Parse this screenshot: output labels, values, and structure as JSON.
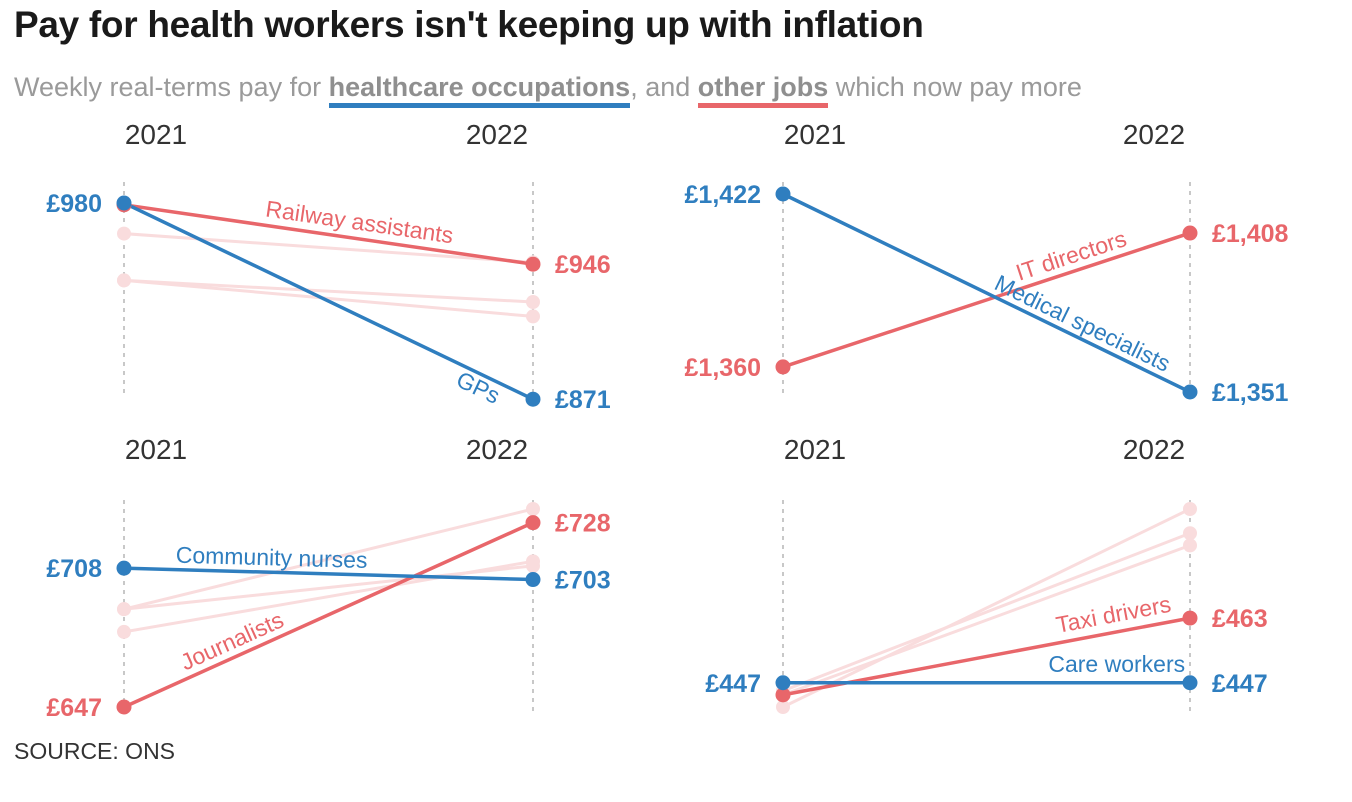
{
  "header": {
    "title": "Pay for health workers isn't keeping up with inflation",
    "subtitle_before": "Weekly real-terms pay for ",
    "subtitle_health": "healthcare occupations",
    "subtitle_middle": ", and ",
    "subtitle_other": "other jobs",
    "subtitle_after": " which now pay more"
  },
  "source": "SOURCE: ONS",
  "colors": {
    "health": "#2f7ebf",
    "other": "#e8666a",
    "ghost": "#f9dcdd",
    "axis": "#c8c8c8"
  },
  "chart_data": [
    {
      "type": "line",
      "x": [
        "2021",
        "2022"
      ],
      "series": [
        {
          "name": "GPs",
          "group": "healthcare",
          "values": [
            980,
            871
          ],
          "start_label": "£980",
          "end_label": "£871"
        },
        {
          "name": "Railway assistants",
          "group": "other",
          "values": [
            979,
            946
          ],
          "end_label": "£946"
        }
      ],
      "background_series": [
        {
          "group": "other",
          "values": [
            963,
            947
          ]
        },
        {
          "group": "other",
          "values": [
            937,
            925
          ]
        },
        {
          "group": "other",
          "values": [
            937,
            917
          ]
        }
      ],
      "ylim": [
        875,
        985
      ]
    },
    {
      "type": "line",
      "x": [
        "2021",
        "2022"
      ],
      "series": [
        {
          "name": "Medical specialists",
          "group": "healthcare",
          "values": [
            1422,
            1351
          ],
          "start_label": "£1,422",
          "end_label": "£1,351"
        },
        {
          "name": "IT directors",
          "group": "other",
          "values": [
            1360,
            1408
          ],
          "start_label": "£1,360",
          "end_label": "£1,408"
        }
      ],
      "background_series": [],
      "ylim": [
        1351,
        1422
      ]
    },
    {
      "type": "line",
      "x": [
        "2021",
        "2022"
      ],
      "series": [
        {
          "name": "Community nurses",
          "group": "healthcare",
          "values": [
            708,
            703
          ],
          "start_label": "£708",
          "end_label": "£703"
        },
        {
          "name": "Journalists",
          "group": "other",
          "values": [
            647,
            728
          ],
          "start_label": "£647",
          "end_label": "£728"
        }
      ],
      "background_series": [
        {
          "group": "other",
          "values": [
            690,
            734
          ]
        },
        {
          "group": "other",
          "values": [
            680,
            711
          ]
        },
        {
          "group": "other",
          "values": [
            690,
            709
          ]
        }
      ],
      "ylim": [
        647,
        734
      ]
    },
    {
      "type": "line",
      "x": [
        "2021",
        "2022"
      ],
      "series": [
        {
          "name": "Care workers",
          "group": "healthcare",
          "values": [
            447,
            447
          ],
          "start_label": "£447",
          "end_label": "£447"
        },
        {
          "name": "Taxi drivers",
          "group": "other",
          "values": [
            444,
            463
          ],
          "end_label": "£463"
        }
      ],
      "background_series": [
        {
          "group": "other",
          "values": [
            441,
            490
          ]
        },
        {
          "group": "other",
          "values": [
            445,
            484
          ]
        },
        {
          "group": "other",
          "values": [
            444,
            481
          ]
        }
      ],
      "ylim": [
        441,
        490
      ]
    }
  ]
}
